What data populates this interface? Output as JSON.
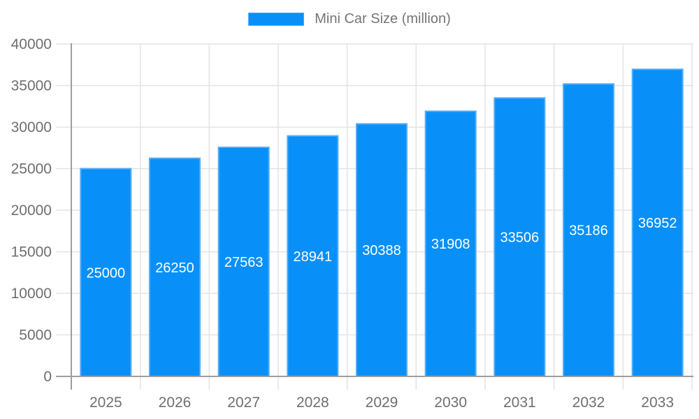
{
  "chart_data": {
    "type": "bar",
    "title": "",
    "legend": {
      "label": "Mini Car Size (million)",
      "position": "top"
    },
    "categories": [
      "2025",
      "2026",
      "2027",
      "2028",
      "2029",
      "2030",
      "2031",
      "2032",
      "2033"
    ],
    "series": [
      {
        "name": "Mini Car Size (million)",
        "values": [
          25000,
          26250,
          27563,
          28941,
          30388,
          31908,
          33506,
          35186,
          36952
        ]
      }
    ],
    "bar_value_labels": [
      "25000",
      "26250",
      "27563",
      "28941",
      "30388",
      "31908",
      "33506",
      "35186",
      "36952"
    ],
    "xlabel": "",
    "ylabel": "",
    "ylim": [
      0,
      40000
    ],
    "ytick_step": 5000,
    "ytick_labels": [
      "0",
      "5000",
      "10000",
      "15000",
      "20000",
      "25000",
      "30000",
      "35000",
      "40000"
    ],
    "grid": true,
    "legend_position": "top-center",
    "colors": {
      "bar_fill": "#0890f8",
      "bar_border": "#54acf8",
      "grid_line": "#e3e3e3",
      "axis_line": "#9e9e9e",
      "tick_text": "#6f6f6f",
      "legend_text": "#757575",
      "bar_label_text": "#ffffff",
      "background": "#ffffff"
    }
  }
}
